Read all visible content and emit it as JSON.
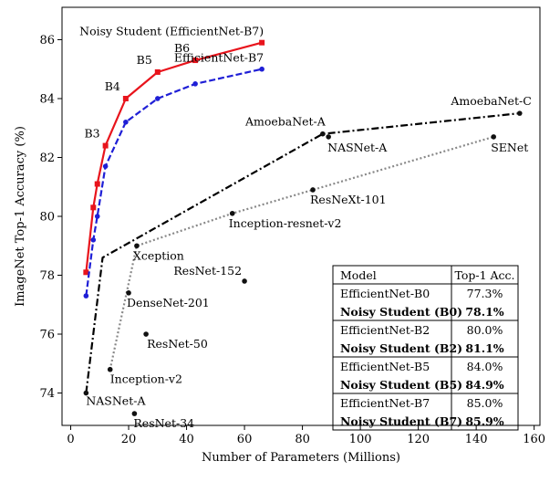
{
  "chart_data": {
    "type": "line",
    "xlabel": "Number of Parameters (Millions)",
    "ylabel": "ImageNet Top-1 Accuracy (%)",
    "xlim": [
      -3,
      162
    ],
    "ylim": [
      72.9,
      87.1
    ],
    "xticks": [
      0,
      20,
      40,
      60,
      80,
      100,
      120,
      140,
      160
    ],
    "yticks": [
      74,
      76,
      78,
      80,
      82,
      84,
      86
    ],
    "grid": false,
    "series": [
      {
        "name": "Noisy Student (EfficientNet-B7)",
        "color": "#e8141c",
        "dash": "solid",
        "marker": "square",
        "x": [
          5.3,
          7.8,
          9.2,
          12,
          19,
          30,
          43,
          66
        ],
        "y": [
          78.1,
          80.3,
          81.1,
          82.4,
          84.0,
          84.9,
          85.3,
          85.9
        ],
        "point_labels": [
          {
            "text": "B3",
            "index": 3
          },
          {
            "text": "B4",
            "index": 4
          },
          {
            "text": "B5",
            "index": 5
          },
          {
            "text": "B6",
            "index": 6
          }
        ]
      },
      {
        "name": "EfficientNet-B7",
        "color": "#1f1fd6",
        "dash": "dashed",
        "marker": "circle",
        "x": [
          5.3,
          7.8,
          9.2,
          12,
          19,
          30,
          43,
          66
        ],
        "y": [
          77.3,
          79.2,
          80.0,
          81.7,
          83.2,
          84.0,
          84.5,
          85.0
        ]
      },
      {
        "name": "",
        "color": "#000000",
        "dash": "dashdot",
        "marker": "circle",
        "x": [
          5.3,
          11,
          87,
          155
        ],
        "y": [
          74.0,
          78.6,
          82.8,
          83.5
        ]
      },
      {
        "name": "",
        "color": "#888888",
        "dash": "dotted",
        "marker": "circle",
        "x": [
          13.6,
          22.8,
          55.8,
          83.6,
          146
        ],
        "y": [
          74.8,
          79.0,
          80.1,
          80.9,
          82.7
        ]
      }
    ],
    "points": [
      {
        "label": "NASNet-A",
        "x": 5.3,
        "y": 74.0
      },
      {
        "label": "Xception",
        "x": 22.8,
        "y": 79.0
      },
      {
        "label": "DenseNet-201",
        "x": 20,
        "y": 77.4
      },
      {
        "label": "ResNet-152",
        "x": 60,
        "y": 77.8
      },
      {
        "label": "ResNet-50",
        "x": 26,
        "y": 76.0
      },
      {
        "label": "Inception-v2",
        "x": 13.6,
        "y": 74.8
      },
      {
        "label": "ResNet-34",
        "x": 22,
        "y": 73.3
      },
      {
        "label": "Inception-resnet-v2",
        "x": 55.8,
        "y": 80.1
      },
      {
        "label": "ResNeXt-101",
        "x": 83.6,
        "y": 80.9
      },
      {
        "label": "AmoebaNet-A",
        "x": 87,
        "y": 82.8
      },
      {
        "label": "NASNet-A",
        "x": 89,
        "y": 82.7
      },
      {
        "label": "SENet",
        "x": 146,
        "y": 82.7
      },
      {
        "label": "AmoebaNet-C",
        "x": 155,
        "y": 83.5
      }
    ],
    "table": {
      "headers": [
        "Model",
        "Top-1 Acc."
      ],
      "rows": [
        {
          "model": "EfficientNet-B0",
          "acc": "77.3%",
          "bold": false
        },
        {
          "model": "Noisy Student (B0)",
          "acc": "78.1%",
          "bold": true
        },
        {
          "model": "EfficientNet-B2",
          "acc": "80.0%",
          "bold": false
        },
        {
          "model": "Noisy Student (B2)",
          "acc": "81.1%",
          "bold": true
        },
        {
          "model": "EfficientNet-B5",
          "acc": "84.0%",
          "bold": false
        },
        {
          "model": "Noisy Student (B5)",
          "acc": "84.9%",
          "bold": true
        },
        {
          "model": "EfficientNet-B7",
          "acc": "85.0%",
          "bold": false
        },
        {
          "model": "Noisy Student (B7)",
          "acc": "85.9%",
          "bold": true
        }
      ]
    }
  }
}
